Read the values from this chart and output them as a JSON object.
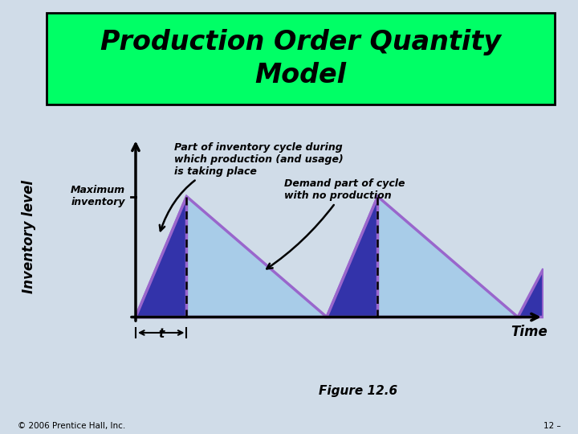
{
  "title": "Production Order Quantity\nModel",
  "title_color": "#000000",
  "title_bg": "#00FF66",
  "fig_bg": "#D0DCE8",
  "ylabel": "Inventory level",
  "xlabel_time": "Time",
  "max_inv_label": "Maximum\ninventory",
  "annotation1": "Part of inventory cycle during\nwhich production (and usage)\nis taking place",
  "annotation2": "Demand part of cycle\nwith no production",
  "figure_label": "Figure 12.6",
  "copyright": "© 2006 Prentice Hall, Inc.",
  "page_num": "12 –",
  "light_blue": "#A8CCE8",
  "purple": "#9966CC",
  "dark_blue": "#3333AA",
  "max_inventory": 1.0
}
